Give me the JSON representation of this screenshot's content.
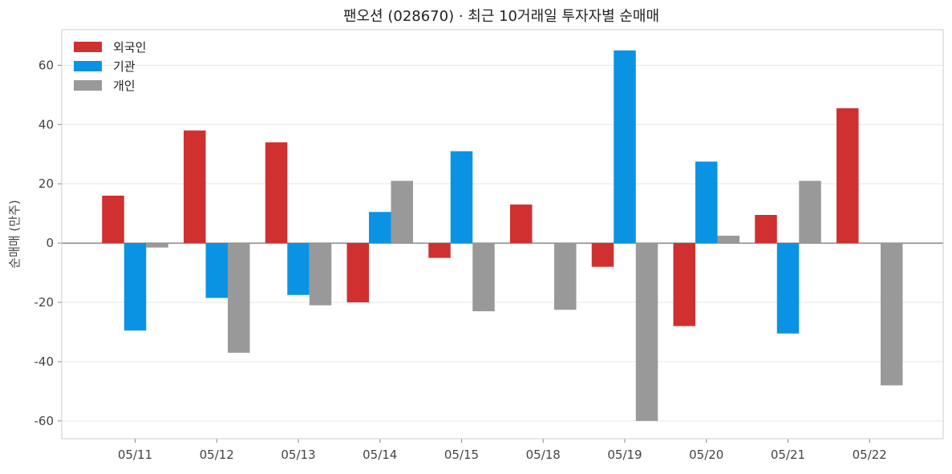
{
  "chart_data": {
    "type": "bar",
    "title": "팬오션 (028670) · 최근 10거래일 투자자별 순매매",
    "xlabel": "",
    "ylabel": "순매매 (만주)",
    "categories": [
      "05/11",
      "05/12",
      "05/13",
      "05/14",
      "05/15",
      "05/18",
      "05/19",
      "05/20",
      "05/21",
      "05/22"
    ],
    "ylim": [
      -66,
      72
    ],
    "yticks": [
      -60,
      -40,
      -20,
      0,
      20,
      40,
      60
    ],
    "grid": true,
    "legend_position": "top-left",
    "series": [
      {
        "name": "외국인",
        "color": "#d03030",
        "values": [
          16,
          38,
          34,
          -20,
          -5,
          13,
          -8,
          -28,
          9.5,
          45.5
        ]
      },
      {
        "name": "기관",
        "color": "#0a93e3",
        "values": [
          -29.5,
          -18.5,
          -17.5,
          10.5,
          31,
          0,
          65,
          27.5,
          -30.5,
          0
        ]
      },
      {
        "name": "개인",
        "color": "#999999",
        "values": [
          -1.5,
          -37,
          -21,
          21,
          -23,
          -22.5,
          -60,
          2.5,
          21,
          -48
        ]
      }
    ]
  }
}
